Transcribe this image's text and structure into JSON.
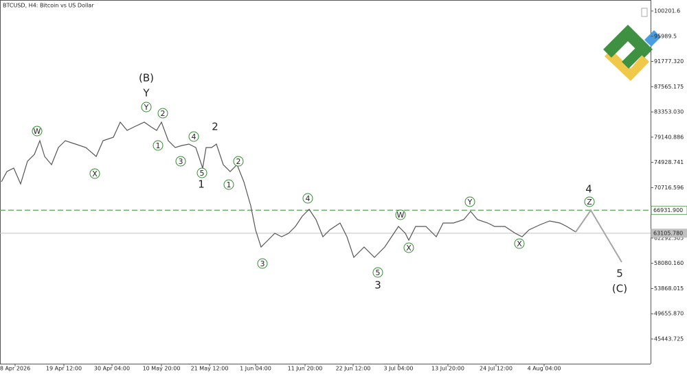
{
  "chart_data": {
    "type": "line",
    "title": "BTCUSD, H4:  Bitcoin vs US Dollar",
    "xlim": [
      0,
      947
    ],
    "ylim": [
      41320,
      102034
    ],
    "xticks": [
      {
        "value": 22,
        "label": "8 Apr 2026"
      },
      {
        "value": 93,
        "label": "19 Apr 12:00"
      },
      {
        "value": 163,
        "label": "30 Apr 04:00"
      },
      {
        "value": 235,
        "label": "10 May 20:00"
      },
      {
        "value": 305,
        "label": "21 May 12:00"
      },
      {
        "value": 372,
        "label": "1 Jun 04:00"
      },
      {
        "value": 444,
        "label": "11 Jun 20:00"
      },
      {
        "value": 514,
        "label": "22 Jun 12:00"
      },
      {
        "value": 580,
        "label": "3 Jul 04:00"
      },
      {
        "value": 652,
        "label": "13 Jul 20:00"
      },
      {
        "value": 722,
        "label": "24 Jul 12:00"
      },
      {
        "value": 792,
        "label": "4 Aug 04:00"
      }
    ],
    "yticks": [
      {
        "value": 100201.6,
        "label": "100201.6"
      },
      {
        "value": 95989.5,
        "label": "95989.5"
      },
      {
        "value": 91777.32,
        "label": "91777.320"
      },
      {
        "value": 87565.175,
        "label": "87565.175"
      },
      {
        "value": 83353.03,
        "label": "83353.030"
      },
      {
        "value": 79140.886,
        "label": "79140.886"
      },
      {
        "value": 74928.741,
        "label": "74928.741"
      },
      {
        "value": 70716.596,
        "label": "70716.596"
      },
      {
        "value": 62292.305,
        "label": "62292.305"
      },
      {
        "value": 58080.16,
        "label": "58080.160"
      },
      {
        "value": 53868.015,
        "label": "53868.015"
      },
      {
        "value": 49655.87,
        "label": "49655.870"
      },
      {
        "value": 45443.725,
        "label": "45443.725"
      }
    ],
    "series": [
      {
        "name": "BTCUSD",
        "color": "#555555",
        "x": [
          2,
          10,
          20,
          30,
          40,
          50,
          58,
          65,
          75,
          85,
          95,
          110,
          125,
          140,
          150,
          165,
          175,
          185,
          195,
          210,
          220,
          228,
          235,
          245,
          255,
          265,
          275,
          285,
          295,
          300,
          308,
          315,
          325,
          335,
          345,
          355,
          365,
          372,
          380,
          390,
          400,
          410,
          420,
          430,
          440,
          450,
          460,
          470,
          480,
          495,
          505,
          515,
          530,
          545,
          550,
          560,
          570,
          580,
          590,
          595,
          605,
          620,
          635,
          645,
          660,
          675,
          685,
          695,
          710,
          720,
          735,
          750,
          760,
          770,
          785,
          800,
          815,
          825,
          838
        ],
        "values": [
          71679,
          73397,
          73970,
          71335,
          75116,
          76261,
          78552,
          75917,
          74543,
          77407,
          78552,
          77979,
          77407,
          75917,
          78552,
          79125,
          81645,
          80270,
          80843,
          81645,
          80843,
          80270,
          81645,
          78552,
          77407,
          77750,
          77979,
          77407,
          73970,
          77407,
          77407,
          77979,
          74543,
          73397,
          74543,
          71679,
          67670,
          63661,
          60797,
          61942,
          63088,
          62515,
          63088,
          64233,
          65952,
          67097,
          65379,
          62515,
          63661,
          64806,
          62515,
          59079,
          60797,
          59079,
          59651,
          60797,
          62515,
          64233,
          63088,
          61942,
          64233,
          64233,
          62515,
          64806,
          64806,
          65379,
          66753,
          65379,
          64806,
          64233,
          64233,
          63088,
          62515,
          63661,
          64462,
          65150,
          64806,
          64233,
          63317
        ]
      },
      {
        "name": "Forecast",
        "color": "#a6a6a6",
        "x": [
          838,
          860,
          905
        ],
        "values": [
          63317,
          66931.9,
          58276
        ]
      }
    ],
    "levels": [
      {
        "value": 66931.9,
        "label": "66931.900",
        "color": "#6aab6a",
        "dashed": true
      },
      {
        "value": 63105.78,
        "label": "63105.780",
        "color": "#c0c0c0",
        "dashed": false
      }
    ],
    "annotations": [
      {
        "text": "(B)",
        "color": "#1f1f6e",
        "circled": false
      },
      {
        "text": "Y",
        "color": "#8b1a1a",
        "circled": false
      },
      {
        "text": "W",
        "color": "#2e8b2e",
        "circled": true
      },
      {
        "text": "X",
        "color": "#2e8b2e",
        "circled": true
      },
      {
        "text": "Y",
        "color": "#2e8b2e",
        "circled": true
      },
      {
        "text": "2",
        "color": "#2e8b2e",
        "circled": true
      },
      {
        "text": "1",
        "color": "#2e8b2e",
        "circled": true
      },
      {
        "text": "4",
        "color": "#2e8b2e",
        "circled": true
      },
      {
        "text": "3",
        "color": "#2e8b2e",
        "circled": true
      },
      {
        "text": "5",
        "color": "#2e8b2e",
        "circled": true
      },
      {
        "text": "1",
        "color": "#8b1a1a",
        "circled": false
      },
      {
        "text": "2",
        "color": "#8b1a1a",
        "circled": false
      },
      {
        "text": "2",
        "color": "#2e8b2e",
        "circled": true
      },
      {
        "text": "1",
        "color": "#2e8b2e",
        "circled": true
      },
      {
        "text": "4",
        "color": "#2e8b2e",
        "circled": true
      },
      {
        "text": "3",
        "color": "#2e8b2e",
        "circled": true
      },
      {
        "text": "5",
        "color": "#2e8b2e",
        "circled": true
      },
      {
        "text": "3",
        "color": "#8b1a1a",
        "circled": false
      },
      {
        "text": "W",
        "color": "#2e8b2e",
        "circled": true
      },
      {
        "text": "X",
        "color": "#2e8b2e",
        "circled": true
      },
      {
        "text": "Y",
        "color": "#2e8b2e",
        "circled": true
      },
      {
        "text": "X",
        "color": "#2e8b2e",
        "circled": true
      },
      {
        "text": "Z",
        "color": "#2e8b2e",
        "circled": true
      },
      {
        "text": "4",
        "color": "#8b1a1a",
        "circled": false
      },
      {
        "text": "5",
        "color": "#8b1a1a",
        "circled": false
      },
      {
        "text": "(C)",
        "color": "#1f1f6e",
        "circled": false
      }
    ]
  }
}
